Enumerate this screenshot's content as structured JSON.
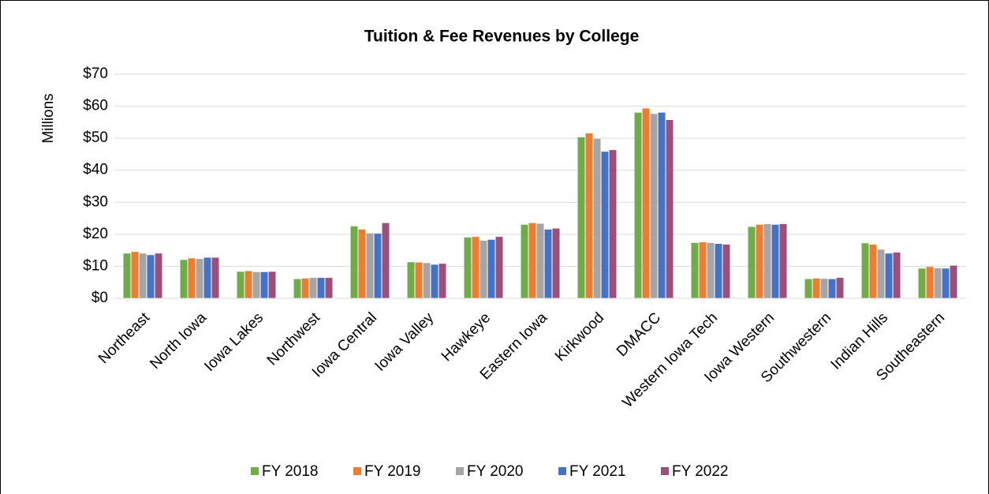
{
  "chart_data": {
    "type": "bar",
    "title": "Tuition & Fee Revenues by College",
    "y_label": "Millions",
    "categories": [
      "Northeast",
      "North Iowa",
      "Iowa Lakes",
      "Northwest",
      "Iowa Central",
      "Iowa Valley",
      "Hawkeye",
      "Eastern Iowa",
      "Kirkwood",
      "DMACC",
      "Western Iowa Tech",
      "Iowa Western",
      "Southwestern",
      "Indian Hills",
      "Southeastern"
    ],
    "series": [
      {
        "name": "FY 2018",
        "color": "#70ad47",
        "values": [
          14.0,
          12.0,
          8.3,
          6.0,
          22.5,
          11.3,
          19.0,
          23.0,
          50.3,
          58.0,
          17.3,
          22.3,
          6.0,
          17.2,
          9.3
        ]
      },
      {
        "name": "FY 2019",
        "color": "#ed7d31",
        "values": [
          14.5,
          12.5,
          8.5,
          6.2,
          21.5,
          11.2,
          19.2,
          23.5,
          51.5,
          59.3,
          17.5,
          23.0,
          6.2,
          16.8,
          9.8
        ]
      },
      {
        "name": "FY 2020",
        "color": "#a5a5a5",
        "values": [
          14.0,
          12.3,
          8.2,
          6.4,
          20.3,
          11.0,
          18.0,
          23.3,
          49.8,
          57.6,
          17.3,
          23.2,
          6.1,
          15.2,
          9.4
        ]
      },
      {
        "name": "FY 2021",
        "color": "#4472c4",
        "values": [
          13.5,
          12.7,
          8.2,
          6.4,
          20.2,
          10.5,
          18.3,
          21.5,
          45.8,
          58.0,
          17.0,
          23.0,
          6.0,
          14.0,
          9.3
        ]
      },
      {
        "name": "FY 2022",
        "color": "#9b4f7a",
        "values": [
          14.0,
          12.7,
          8.3,
          6.4,
          23.5,
          10.8,
          19.2,
          21.8,
          46.3,
          55.7,
          16.8,
          23.2,
          6.4,
          14.3,
          10.2
        ]
      }
    ],
    "ylim": [
      0,
      70
    ],
    "yticks": [
      {
        "value": 0,
        "label": "$0"
      },
      {
        "value": 10,
        "label": "$10"
      },
      {
        "value": 20,
        "label": "$20"
      },
      {
        "value": 30,
        "label": "$30"
      },
      {
        "value": 40,
        "label": "$40"
      },
      {
        "value": 50,
        "label": "$50"
      },
      {
        "value": 60,
        "label": "$60"
      },
      {
        "value": 70,
        "label": "$70"
      }
    ],
    "grid": true,
    "legend": "bottom"
  }
}
